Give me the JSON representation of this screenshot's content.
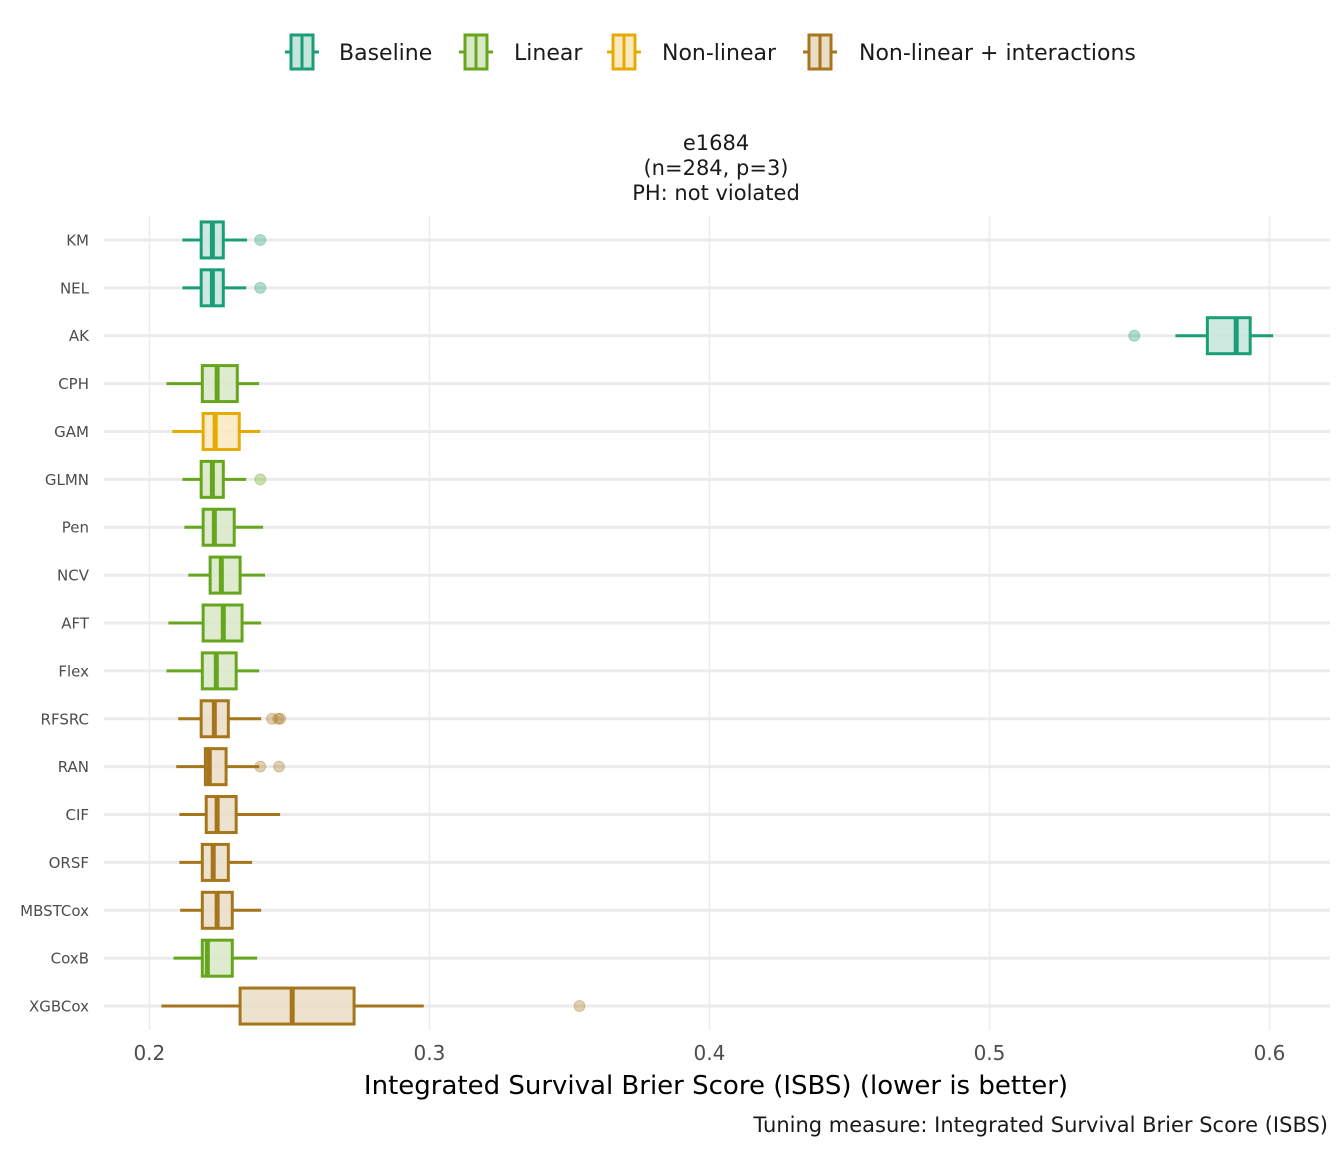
{
  "chart_data": {
    "type": "boxplot",
    "orientation": "horizontal",
    "title_lines": [
      "e1684",
      "(n=284, p=3)",
      "PH: not violated"
    ],
    "xlabel": "Integrated Survival Brier Score (ISBS) (lower is better)",
    "ylabel": "",
    "caption": "Tuning measure: Integrated Survival Brier Score (ISBS)",
    "xlim": [
      0.1838,
      0.6216
    ],
    "x_ticks": [
      0.2,
      0.3,
      0.4,
      0.5,
      0.6
    ],
    "x_tick_labels": [
      "0.2",
      "0.3",
      "0.4",
      "0.5",
      "0.6"
    ],
    "grid": true,
    "legend_position": "top",
    "legend": [
      {
        "name": "Baseline",
        "stroke": "#1b9e77",
        "fill": "#c3e6da"
      },
      {
        "name": "Linear",
        "stroke": "#66a61e",
        "fill": "#d9e8c7"
      },
      {
        "name": "Non-linear",
        "stroke": "#e6ab02",
        "fill": "#f9e9bf"
      },
      {
        "name": "Non-linear + interactions",
        "stroke": "#a6761d",
        "fill": "#e9ddc6"
      }
    ],
    "series": [
      {
        "name": "KM",
        "group": "Baseline",
        "whisker_low": 0.2118,
        "q1": 0.2185,
        "median": 0.2225,
        "q3": 0.2264,
        "whisker_high": 0.2349,
        "outliers": [
          0.2396
        ]
      },
      {
        "name": "NEL",
        "group": "Baseline",
        "whisker_low": 0.2118,
        "q1": 0.2185,
        "median": 0.2225,
        "q3": 0.2264,
        "whisker_high": 0.2346,
        "outliers": [
          0.2396
        ]
      },
      {
        "name": "AK",
        "group": "Baseline",
        "whisker_low": 0.5664,
        "q1": 0.5778,
        "median": 0.5881,
        "q3": 0.5931,
        "whisker_high": 0.6013,
        "outliers": [
          0.5517
        ]
      },
      {
        "name": "CPH",
        "group": "Linear",
        "whisker_low": 0.2061,
        "q1": 0.2189,
        "median": 0.2242,
        "q3": 0.2314,
        "whisker_high": 0.2392,
        "outliers": []
      },
      {
        "name": "GAM",
        "group": "Non-linear",
        "whisker_low": 0.2082,
        "q1": 0.2192,
        "median": 0.2235,
        "q3": 0.2321,
        "whisker_high": 0.2396,
        "outliers": []
      },
      {
        "name": "GLMN",
        "group": "Linear",
        "whisker_low": 0.2118,
        "q1": 0.2185,
        "median": 0.2225,
        "q3": 0.2264,
        "whisker_high": 0.2346,
        "outliers": [
          0.2396
        ]
      },
      {
        "name": "Pen",
        "group": "Linear",
        "whisker_low": 0.2125,
        "q1": 0.2192,
        "median": 0.2232,
        "q3": 0.2303,
        "whisker_high": 0.2406,
        "outliers": []
      },
      {
        "name": "NCV",
        "group": "Linear",
        "whisker_low": 0.2139,
        "q1": 0.2217,
        "median": 0.2257,
        "q3": 0.2324,
        "whisker_high": 0.2413,
        "outliers": []
      },
      {
        "name": "AFT",
        "group": "Linear",
        "whisker_low": 0.2068,
        "q1": 0.2192,
        "median": 0.2264,
        "q3": 0.2331,
        "whisker_high": 0.2399,
        "outliers": []
      },
      {
        "name": "Flex",
        "group": "Linear",
        "whisker_low": 0.2061,
        "q1": 0.2189,
        "median": 0.2239,
        "q3": 0.231,
        "whisker_high": 0.2392,
        "outliers": []
      },
      {
        "name": "RFSRC",
        "group": "Non-linear + interactions",
        "whisker_low": 0.2103,
        "q1": 0.2185,
        "median": 0.2232,
        "q3": 0.2282,
        "whisker_high": 0.2399,
        "outliers": [
          0.2438,
          0.246,
          0.2467
        ]
      },
      {
        "name": "RAN",
        "group": "Non-linear + interactions",
        "whisker_low": 0.2096,
        "q1": 0.22,
        "median": 0.2214,
        "q3": 0.2274,
        "whisker_high": 0.2392,
        "outliers": [
          0.2396,
          0.2463
        ]
      },
      {
        "name": "CIF",
        "group": "Non-linear + interactions",
        "whisker_low": 0.2107,
        "q1": 0.2203,
        "median": 0.2242,
        "q3": 0.231,
        "whisker_high": 0.2467,
        "outliers": []
      },
      {
        "name": "ORSF",
        "group": "Non-linear + interactions",
        "whisker_low": 0.2107,
        "q1": 0.2189,
        "median": 0.2228,
        "q3": 0.2282,
        "whisker_high": 0.2367,
        "outliers": []
      },
      {
        "name": "MBSTCox",
        "group": "Non-linear + interactions",
        "whisker_low": 0.211,
        "q1": 0.2189,
        "median": 0.2242,
        "q3": 0.2296,
        "whisker_high": 0.2399,
        "outliers": []
      },
      {
        "name": "CoxB",
        "group": "Linear",
        "whisker_low": 0.2086,
        "q1": 0.2189,
        "median": 0.2207,
        "q3": 0.2296,
        "whisker_high": 0.2385,
        "outliers": []
      },
      {
        "name": "XGBCox",
        "group": "Non-linear + interactions",
        "whisker_low": 0.2043,
        "q1": 0.2324,
        "median": 0.251,
        "q3": 0.2731,
        "whisker_high": 0.298,
        "outliers": [
          0.3536
        ]
      }
    ]
  }
}
